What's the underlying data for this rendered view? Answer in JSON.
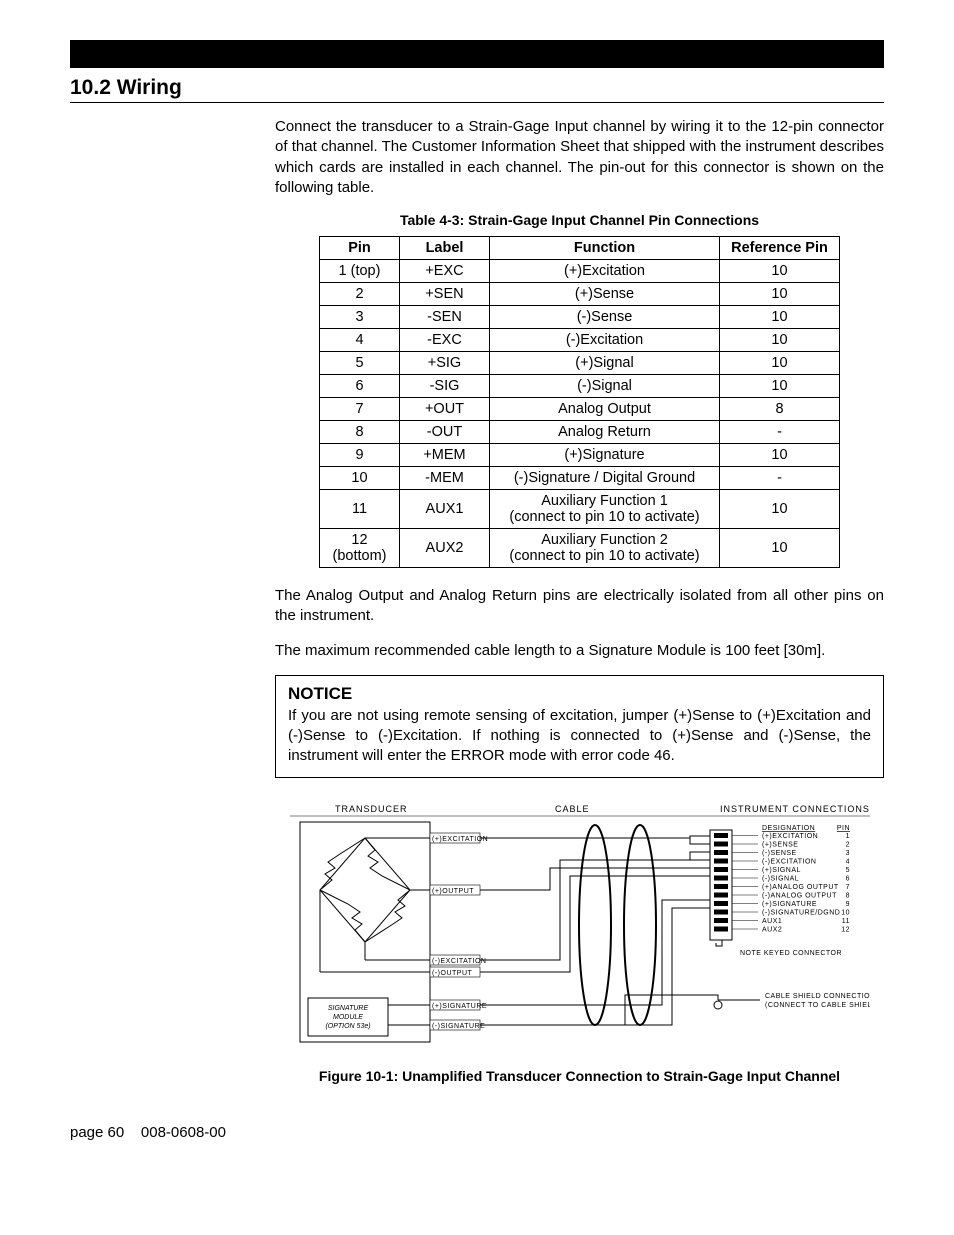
{
  "section_heading": "10.2 Wiring",
  "intro_paragraph": "Connect the transducer to a Strain-Gage Input channel by wiring it to the 12-pin connector of that channel.  The Customer Information Sheet that shipped with the instrument describes which cards are installed in each channel. The pin-out for this connector is shown on the following table.",
  "table_caption": "Table 4-3: Strain-Gage Input Channel Pin Connections",
  "table": {
    "headers": [
      "Pin",
      "Label",
      "Function",
      "Reference Pin"
    ],
    "rows": [
      [
        "1 (top)",
        "+EXC",
        "(+)Excitation",
        "10"
      ],
      [
        "2",
        "+SEN",
        "(+)Sense",
        "10"
      ],
      [
        "3",
        "-SEN",
        "(-)Sense",
        "10"
      ],
      [
        "4",
        "-EXC",
        "(-)Excitation",
        "10"
      ],
      [
        "5",
        "+SIG",
        "(+)Signal",
        "10"
      ],
      [
        "6",
        "-SIG",
        "(-)Signal",
        "10"
      ],
      [
        "7",
        "+OUT",
        "Analog Output",
        "8"
      ],
      [
        "8",
        "-OUT",
        "Analog Return",
        "-"
      ],
      [
        "9",
        "+MEM",
        "(+)Signature",
        "10"
      ],
      [
        "10",
        "-MEM",
        "(-)Signature / Digital Ground",
        "-"
      ],
      [
        "11",
        "AUX1",
        "Auxiliary Function 1\n(connect to pin 10 to activate)",
        "10"
      ],
      [
        "12\n(bottom)",
        "AUX2",
        "Auxiliary Function 2\n(connect to pin 10 to activate)",
        "10"
      ]
    ]
  },
  "para_isolation": "The Analog Output and Analog Return pins are electrically isolated from all other pins on the instrument.",
  "para_cable": "The maximum recommended cable length to a Signature Module is 100 feet [30m].",
  "notice": {
    "head": "NOTICE",
    "body": "If you are not using remote sensing of excitation, jumper (+)Sense to (+)Excitation and (-)Sense to (-)Excitation.  If nothing is connected to (+)Sense and (-)Sense, the instrument will enter the ERROR mode with error code 46."
  },
  "figure_caption": "Figure 10-1: Unamplified Transducer Connection to Strain-Gage Input Channel",
  "footer": {
    "page_label": "page 60",
    "doc_number": "008-0608-00"
  },
  "diagram": {
    "header_transducer": "TRANSDUCER",
    "header_cable": "CABLE",
    "header_instrument": "INSTRUMENT CONNECTIONS",
    "wire_labels": [
      "(+)EXCITATION",
      "(+)OUTPUT",
      "(-)EXCITATION",
      "(-)OUTPUT",
      "(+)SIGNATURE",
      "(-)SIGNATURE"
    ],
    "sig_module": [
      "SIGNATURE",
      "MODULE",
      "(OPTION 53e)"
    ],
    "conn_table_head": [
      "DESIGNATION",
      "PIN"
    ],
    "conn_rows": [
      [
        "(+)EXCITATION",
        "1"
      ],
      [
        "(+)SENSE",
        "2"
      ],
      [
        "(-)SENSE",
        "3"
      ],
      [
        "(-)EXCITATION",
        "4"
      ],
      [
        "(+)SIGNAL",
        "5"
      ],
      [
        "(-)SIGNAL",
        "6"
      ],
      [
        "(+)ANALOG OUTPUT",
        "7"
      ],
      [
        "(-)ANALOG OUTPUT",
        "8"
      ],
      [
        "(+)SIGNATURE",
        "9"
      ],
      [
        "(-)SIGNATURE/DGND",
        "10"
      ],
      [
        "AUX1",
        "11"
      ],
      [
        "AUX2",
        "12"
      ]
    ],
    "note_keyed": "NOTE KEYED CONNECTOR",
    "shield_note": [
      "CABLE SHIELD CONNECTION SCREW",
      "(CONNECT TO CABLE SHIELD)"
    ]
  },
  "colors": {
    "text": "#000000",
    "background": "#ffffff",
    "blackbar": "#000000",
    "border": "#000000"
  }
}
